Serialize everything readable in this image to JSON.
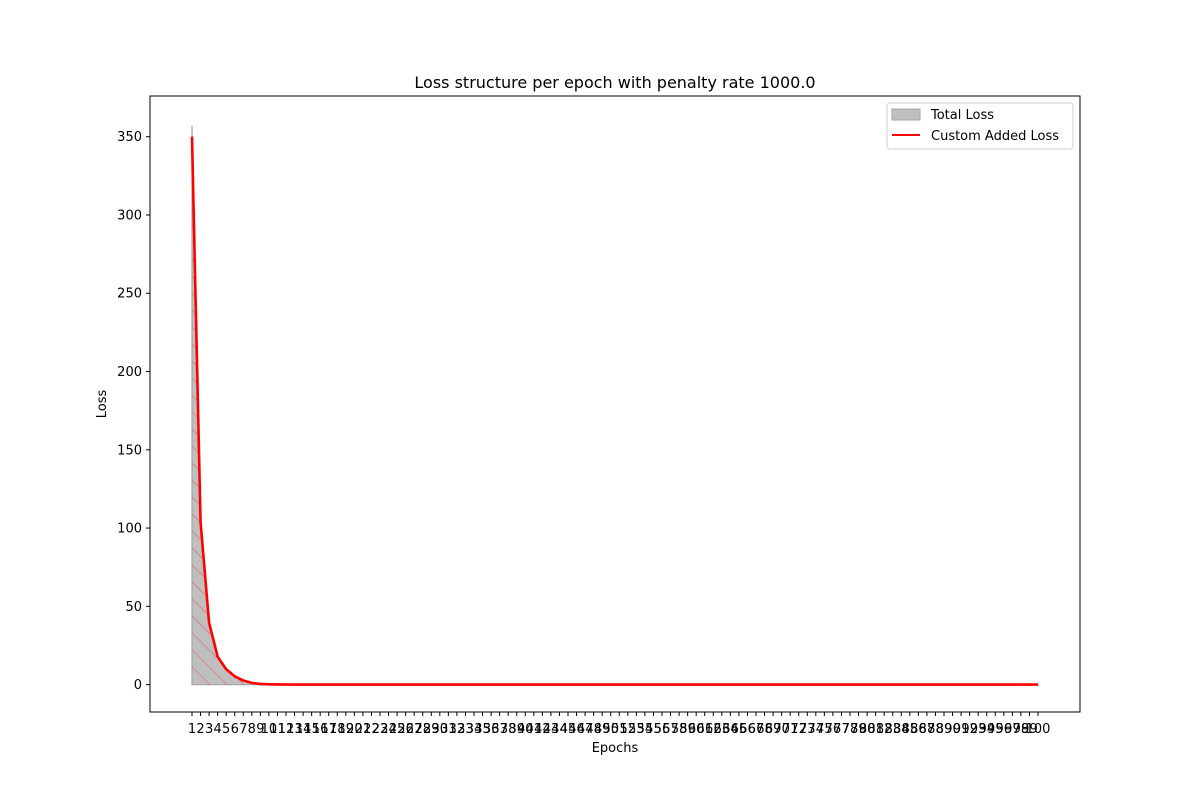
{
  "chart_data": {
    "type": "area",
    "title": "Loss structure per epoch with penalty rate 1000.0",
    "xlabel": "Epochs",
    "ylabel": "Loss",
    "x": [
      1,
      2,
      3,
      4,
      5,
      6,
      7,
      8,
      9,
      10,
      11,
      12,
      13,
      14,
      15,
      16,
      17,
      18,
      19,
      20,
      21,
      22,
      23,
      24,
      25,
      26,
      27,
      28,
      29,
      30,
      31,
      32,
      33,
      34,
      35,
      36,
      37,
      38,
      39,
      40,
      41,
      42,
      43,
      44,
      45,
      46,
      47,
      48,
      49,
      50,
      51,
      52,
      53,
      54,
      55,
      56,
      57,
      58,
      59,
      60,
      61,
      62,
      63,
      64,
      65,
      66,
      67,
      68,
      69,
      70,
      71,
      72,
      73,
      74,
      75,
      76,
      77,
      78,
      79,
      80,
      81,
      82,
      83,
      84,
      85,
      86,
      87,
      88,
      89,
      90,
      91,
      92,
      93,
      94,
      95,
      96,
      97,
      98,
      99,
      100
    ],
    "y_ticks": [
      0,
      50,
      100,
      150,
      200,
      250,
      300,
      350
    ],
    "ylim": [
      -17.5,
      376
    ],
    "grid": false,
    "legend_position": "top-right",
    "series": [
      {
        "name": "Total Loss",
        "kind": "area",
        "color": "#bfbfbf",
        "edge_color": "#a6a6a6",
        "hatch_color": "#e06666",
        "values": [
          357,
          105,
          40,
          18,
          10,
          5.5,
          2.8,
          1.2,
          0.5,
          0.3,
          0.2,
          0.15,
          0.1,
          0.1,
          0.1,
          0.1,
          0.1,
          0.1,
          0.1,
          0.1,
          0.1,
          0.1,
          0.1,
          0.1,
          0.1,
          0.1,
          0.1,
          0.1,
          0.1,
          0.1,
          0.1,
          0.1,
          0.1,
          0.1,
          0.1,
          0.1,
          0.1,
          0.1,
          0.1,
          0.1,
          0.1,
          0.1,
          0.1,
          0.1,
          0.1,
          0.1,
          0.1,
          0.1,
          0.1,
          0.1,
          0.1,
          0.1,
          0.1,
          0.1,
          0.1,
          0.1,
          0.1,
          0.1,
          0.1,
          0.1,
          0.1,
          0.1,
          0.1,
          0.1,
          0.1,
          0.1,
          0.1,
          0.1,
          0.1,
          0.1,
          0.1,
          0.1,
          0.1,
          0.1,
          0.1,
          0.1,
          0.1,
          0.1,
          0.1,
          0.1,
          0.1,
          0.1,
          0.1,
          0.1,
          0.1,
          0.1,
          0.1,
          0.1,
          0.1,
          0.1,
          0.1,
          0.1,
          0.1,
          0.1,
          0.1,
          0.1,
          0.1,
          0.1,
          0.1,
          0.1
        ]
      },
      {
        "name": "Custom Added Loss",
        "kind": "line",
        "color": "#ff0000",
        "values": [
          350,
          104,
          39.5,
          17.8,
          9.8,
          5.3,
          2.6,
          1.1,
          0.4,
          0.2,
          0.1,
          0.05,
          0,
          0,
          0,
          0,
          0,
          0,
          0,
          0,
          0,
          0,
          0,
          0,
          0,
          0,
          0,
          0,
          0,
          0,
          0,
          0,
          0,
          0,
          0,
          0,
          0,
          0,
          0,
          0,
          0,
          0,
          0,
          0,
          0,
          0,
          0,
          0,
          0,
          0,
          0,
          0,
          0,
          0,
          0,
          0,
          0,
          0,
          0,
          0,
          0,
          0,
          0,
          0,
          0,
          0,
          0,
          0,
          0,
          0,
          0,
          0,
          0,
          0,
          0,
          0,
          0,
          0,
          0,
          0,
          0,
          0,
          0,
          0,
          0,
          0,
          0,
          0,
          0,
          0,
          0,
          0,
          0,
          0,
          0,
          0,
          0,
          0,
          0,
          0
        ]
      }
    ]
  }
}
